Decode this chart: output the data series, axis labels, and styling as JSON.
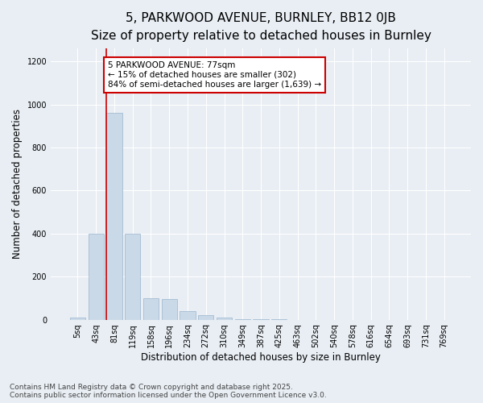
{
  "title_line1": "5, PARKWOOD AVENUE, BURNLEY, BB12 0JB",
  "title_line2": "Size of property relative to detached houses in Burnley",
  "xlabel": "Distribution of detached houses by size in Burnley",
  "ylabel": "Number of detached properties",
  "categories": [
    "5sq",
    "43sq",
    "81sq",
    "119sq",
    "158sq",
    "196sq",
    "234sq",
    "272sq",
    "310sq",
    "349sq",
    "387sq",
    "425sq",
    "463sq",
    "502sq",
    "540sq",
    "578sq",
    "616sq",
    "654sq",
    "693sq",
    "731sq",
    "769sq"
  ],
  "values": [
    10,
    400,
    960,
    400,
    100,
    95,
    40,
    20,
    8,
    3,
    2,
    1,
    0,
    0,
    0,
    0,
    0,
    0,
    0,
    0,
    0
  ],
  "bar_color": "#cad9e8",
  "bar_edgecolor": "#9ab5cc",
  "vertical_line_color": "#cc0000",
  "annotation_text": "5 PARKWOOD AVENUE: 77sqm\n← 15% of detached houses are smaller (302)\n84% of semi-detached houses are larger (1,639) →",
  "annotation_box_facecolor": "#ffffff",
  "annotation_box_edgecolor": "#cc0000",
  "ylim": [
    0,
    1260
  ],
  "yticks": [
    0,
    200,
    400,
    600,
    800,
    1000,
    1200
  ],
  "background_color": "#e8eef4",
  "plot_background": "#e8eef4",
  "footer_line1": "Contains HM Land Registry data © Crown copyright and database right 2025.",
  "footer_line2": "Contains public sector information licensed under the Open Government Licence v3.0.",
  "grid_color": "#ffffff",
  "title_fontsize": 11,
  "subtitle_fontsize": 9,
  "axis_label_fontsize": 8.5,
  "tick_fontsize": 7,
  "footer_fontsize": 6.5,
  "annotation_fontsize": 7.5
}
